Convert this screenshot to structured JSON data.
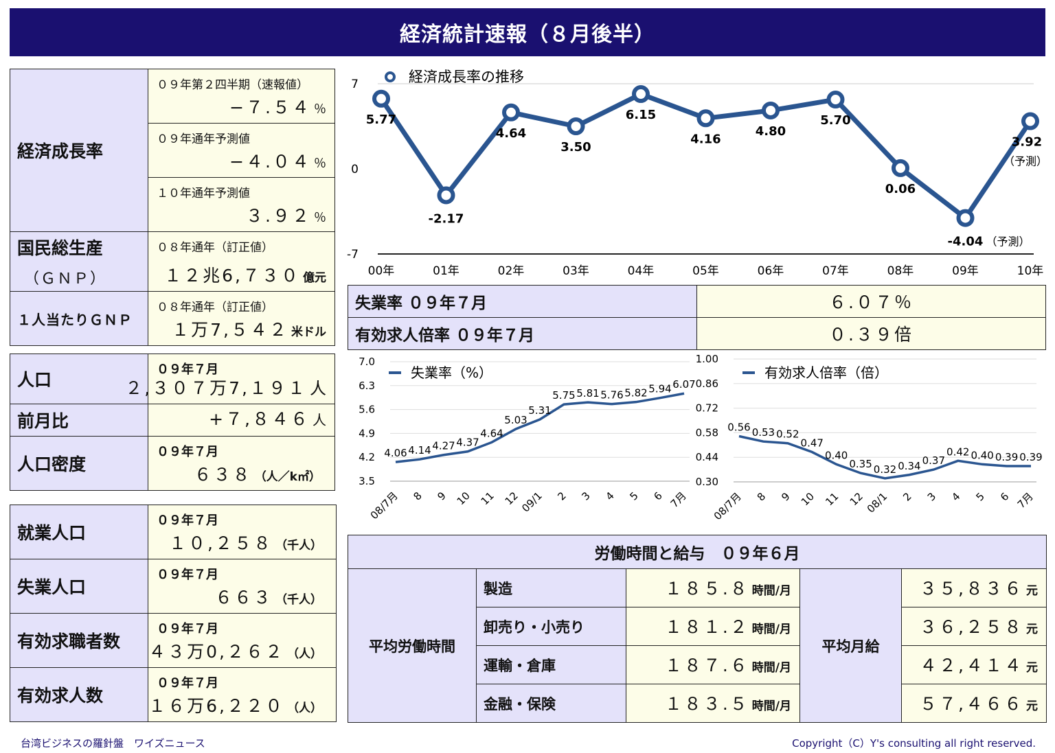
{
  "title": "経済統計速報（８月後半）",
  "gdp_block": {
    "growth_label": "経済成長率",
    "rows": [
      {
        "sub": "０９年第２四半期（速報値）",
        "value": "−７.５４",
        "unit": "％"
      },
      {
        "sub": "０９年通年予測値",
        "value": "−４.０４",
        "unit": "％"
      },
      {
        "sub": "１０年通年予測値",
        "value": "３.９２",
        "unit": "％"
      }
    ],
    "gnp_label": "国民総生産",
    "gnp_label_sub": "（ＧＮＰ）",
    "gnp_sub": "０８年通年（訂正値）",
    "gnp_value": "１２兆6,７３０",
    "gnp_unit": "億元",
    "gnp_pc_label": "１人当たりＧＮＰ",
    "gnp_pc_sub": "０８年通年（訂正値）",
    "gnp_pc_value": "１万7,５４２",
    "gnp_pc_unit": "米ドル"
  },
  "population": {
    "pop_label": "人口",
    "pop_sub": "０９年７月",
    "pop_value": "２,３０７万7,１９１",
    "pop_unit": "人",
    "mom_label": "前月比",
    "mom_value": "+７,８４６",
    "mom_unit": "人",
    "density_label": "人口密度",
    "density_sub": "０９年７月",
    "density_value": "６３８",
    "density_unit": "（人／k㎡）"
  },
  "employment": [
    {
      "label": "就業人口",
      "sub": "０９年７月",
      "value": "１０,２５８",
      "unit": "（千人）"
    },
    {
      "label": "失業人口",
      "sub": "０９年７月",
      "value": "６６３",
      "unit": "（千人）"
    },
    {
      "label": "有効求職者数",
      "sub": "０９年７月",
      "value": "４３万0,２６２",
      "unit": "（人）"
    },
    {
      "label": "有効求人数",
      "sub": "０９年７月",
      "value": "１６万6,２２０",
      "unit": "（人）"
    }
  ],
  "unemp_table": [
    {
      "label": "失業率 ０９年７月",
      "value": "６.０７％"
    },
    {
      "label": "有効求人倍率 ０９年７月",
      "value": "０.３９倍"
    }
  ],
  "labor": {
    "title": "労働時間と給与　０９年６月",
    "hours_label": "平均労働時間",
    "wage_label": "平均月給",
    "hours_unit": "時間/月",
    "wage_unit": "元",
    "rows": [
      {
        "industry": "製造",
        "hours": "１８５.８",
        "wage": "３５,８３６"
      },
      {
        "industry": "卸売り・小売り",
        "hours": "１８１.２",
        "wage": "３６,２５８"
      },
      {
        "industry": "運輸・倉庫",
        "hours": "１８７.６",
        "wage": "４２,４１４"
      },
      {
        "industry": "金融・保険",
        "hours": "１８３.５",
        "wage": "５７,４６６"
      }
    ]
  },
  "footer": {
    "left": "台湾ビジネスの羅針盤　ワイズニュース",
    "right": "Copyright（C）Y's consulting all right reserved."
  },
  "chart_data": [
    {
      "type": "line",
      "title": "",
      "series_name": "経済成長率の推移",
      "categories": [
        "00年",
        "01年",
        "02年",
        "03年",
        "04年",
        "05年",
        "06年",
        "07年",
        "08年",
        "09年",
        "10年"
      ],
      "values": [
        5.77,
        -2.17,
        4.64,
        3.5,
        6.15,
        4.16,
        4.8,
        5.7,
        0.06,
        -4.04,
        3.92
      ],
      "labels": [
        "5.77",
        "-2.17",
        "4.64",
        "3.50",
        "6.15",
        "4.16",
        "4.80",
        "5.70",
        "0.06",
        "-4.04",
        "3.92"
      ],
      "forecast_note": "（予測）",
      "ylim": [
        -7,
        7
      ],
      "yticks": [
        "7",
        "0",
        "-7"
      ],
      "color": "#2a5590"
    },
    {
      "type": "line",
      "series_name": "失業率（%）",
      "categories": [
        "08/7月",
        "8",
        "9",
        "10",
        "11",
        "12",
        "09/1",
        "2",
        "3",
        "4",
        "5",
        "6",
        "7月"
      ],
      "values": [
        4.06,
        4.14,
        4.27,
        4.37,
        4.64,
        5.03,
        5.31,
        5.75,
        5.81,
        5.76,
        5.82,
        5.94,
        6.07
      ],
      "labels": [
        "4.06",
        "4.14",
        "4.27",
        "4.37",
        "4.64",
        "5.03",
        "5.31",
        "5.75",
        "5.81",
        "5.76",
        "5.82",
        "5.94",
        "6.07"
      ],
      "ylim": [
        3.5,
        7.0
      ],
      "yticks": [
        "7.0",
        "6.3",
        "5.6",
        "4.9",
        "4.2",
        "3.5"
      ],
      "color": "#2a5590"
    },
    {
      "type": "line",
      "series_name": "有効求人倍率（倍）",
      "categories": [
        "08/7月",
        "8",
        "9",
        "10",
        "11",
        "12",
        "08/1",
        "2",
        "3",
        "4",
        "5",
        "6",
        "7月"
      ],
      "values": [
        0.56,
        0.53,
        0.52,
        0.47,
        0.4,
        0.35,
        0.32,
        0.34,
        0.37,
        0.42,
        0.4,
        0.39,
        0.39
      ],
      "labels": [
        "0.56",
        "0.53",
        "0.52",
        "0.47",
        "0.40",
        "0.35",
        "0.32",
        "0.34",
        "0.37",
        "0.42",
        "0.40",
        "0.39",
        "0.39"
      ],
      "ylim": [
        0.3,
        1.0
      ],
      "yticks": [
        "1.00",
        "0.86",
        "0.72",
        "0.58",
        "0.44",
        "0.30"
      ],
      "color": "#2a5590"
    }
  ]
}
